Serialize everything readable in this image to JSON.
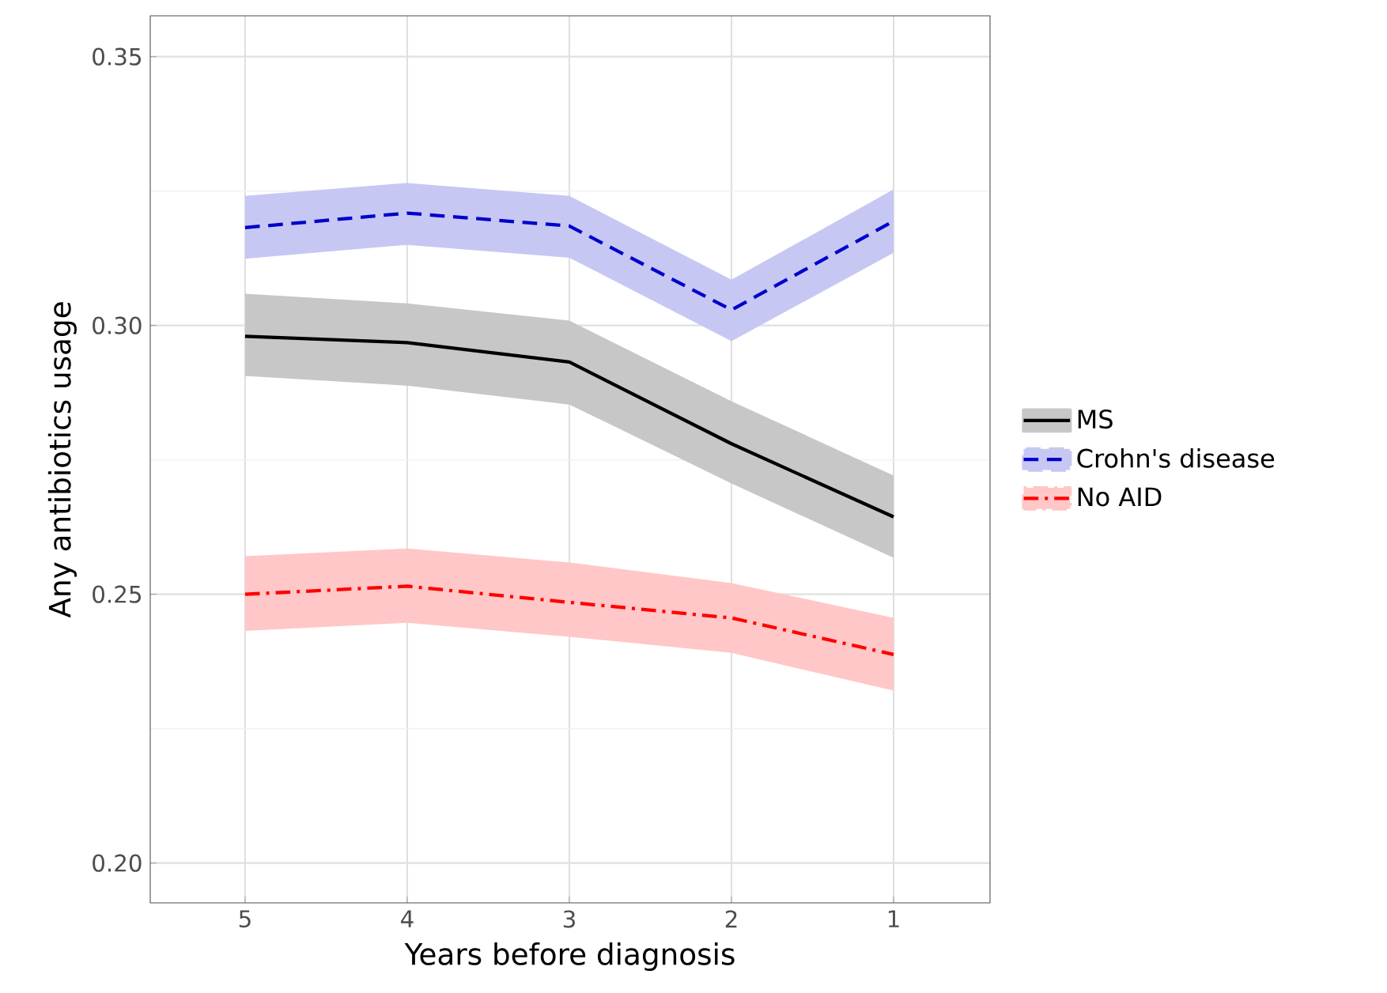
{
  "chart_data": {
    "type": "line",
    "xlabel": "Years before diagnosis",
    "ylabel": "Any antibiotics usage",
    "x": [
      5,
      4,
      3,
      2,
      1
    ],
    "series": [
      {
        "name": "MS",
        "color": "#000000",
        "line_style": "solid",
        "values": [
          0.298,
          0.2968,
          0.2932,
          0.278,
          0.2644
        ],
        "upper": [
          0.3059,
          0.3041,
          0.3009,
          0.2859,
          0.2721
        ],
        "lower": [
          0.2906,
          0.2888,
          0.2853,
          0.2706,
          0.2568
        ]
      },
      {
        "name": "Crohn's disease",
        "color": "#0000cc",
        "line_style": "dashed",
        "values": [
          0.3182,
          0.3209,
          0.3185,
          0.3029,
          0.3194
        ],
        "upper": [
          0.3241,
          0.3265,
          0.3241,
          0.3085,
          0.3253
        ],
        "lower": [
          0.3124,
          0.315,
          0.3126,
          0.2971,
          0.3135
        ]
      },
      {
        "name": "No AID",
        "color": "#ff0000",
        "line_style": "dashdot",
        "values": [
          0.25,
          0.2515,
          0.2485,
          0.2456,
          0.2388
        ],
        "upper": [
          0.2571,
          0.2585,
          0.2559,
          0.2521,
          0.2456
        ],
        "lower": [
          0.2432,
          0.2447,
          0.2421,
          0.2391,
          0.2321
        ]
      }
    ],
    "xlim": [
      5.585,
      0.405
    ],
    "ylim": [
      0.1926,
      0.3576
    ],
    "xticks": [
      5,
      4,
      3,
      2,
      1
    ],
    "yticks": [
      {
        "value": 0.2,
        "label": "0.20"
      },
      {
        "value": 0.25,
        "label": "0.25"
      },
      {
        "value": 0.3,
        "label": "0.30"
      },
      {
        "value": 0.35,
        "label": "0.35"
      }
    ],
    "grid": true,
    "legend": "right",
    "marker": "none"
  }
}
